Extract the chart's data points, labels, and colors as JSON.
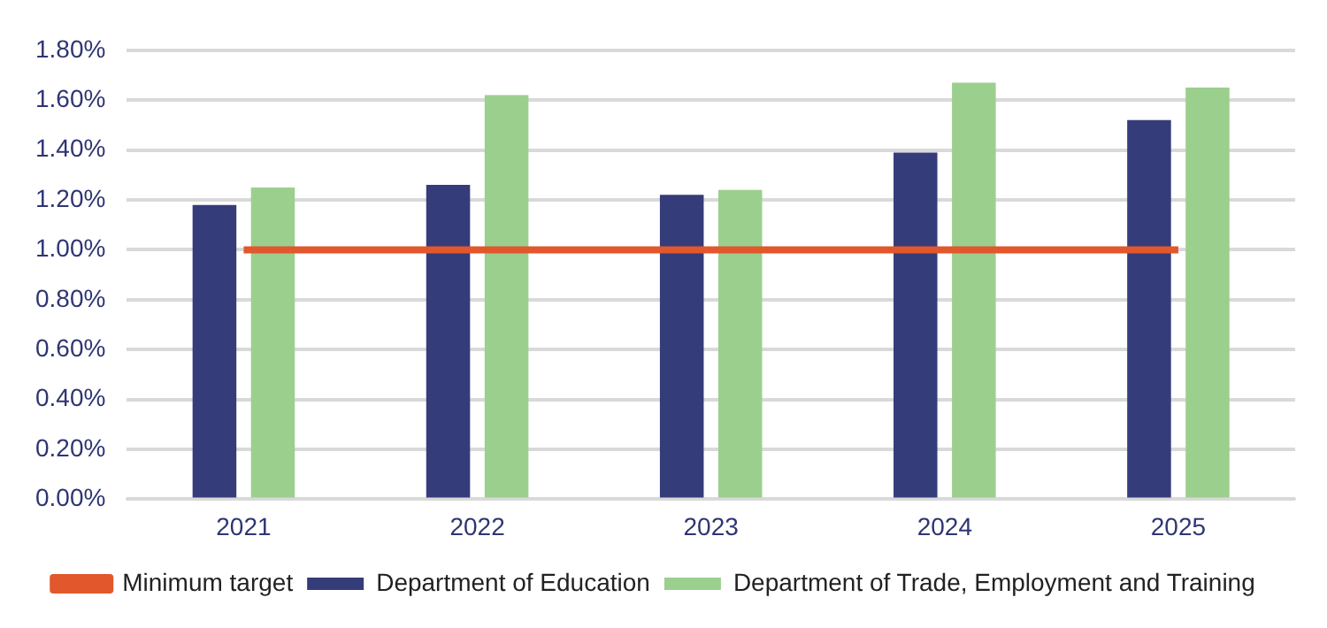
{
  "chart_data": {
    "type": "bar",
    "categories": [
      "2021",
      "2022",
      "2023",
      "2024",
      "2025"
    ],
    "series": [
      {
        "name": "Department of Education",
        "color": "#353c7a",
        "values": [
          1.18,
          1.26,
          1.22,
          1.39,
          1.52
        ]
      },
      {
        "name": "Department of Trade, Employment and Training",
        "color": "#9bcf8e",
        "values": [
          1.25,
          1.62,
          1.24,
          1.67,
          1.65
        ]
      },
      {
        "name": "Minimum target",
        "type": "line",
        "color": "#e2572b",
        "marker": "none",
        "line_style": "solid",
        "values": [
          1,
          1,
          1,
          1,
          1
        ]
      }
    ],
    "ylim": [
      0,
      1.8
    ],
    "yticks": [
      {
        "value": 0,
        "label": "0.00%"
      },
      {
        "value": 0.2,
        "label": "0.20%"
      },
      {
        "value": 0.4,
        "label": "0.40%"
      },
      {
        "value": 0.6,
        "label": "0.60%"
      },
      {
        "value": 0.8,
        "label": "0.80%"
      },
      {
        "value": 1,
        "label": "1.00%"
      },
      {
        "value": 1.2,
        "label": "1.20%"
      },
      {
        "value": 1.4,
        "label": "1.40%"
      },
      {
        "value": 1.6,
        "label": "1.60%"
      },
      {
        "value": 1.8,
        "label": "1.80%"
      }
    ],
    "grid": "y",
    "legend": "bottom"
  }
}
